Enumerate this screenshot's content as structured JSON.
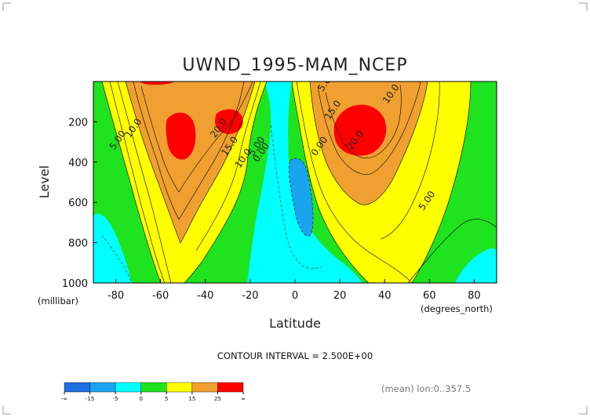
{
  "chart_data": {
    "type": "heatmap",
    "subtype": "filled-contour",
    "title": "UWND_1995-MAM_NCEP",
    "xlabel": "Latitude",
    "ylabel": "Level",
    "x_units": "(degrees_north)",
    "y_units": "(millibar)",
    "xlim": [
      -90,
      90
    ],
    "ylim": [
      1000,
      0
    ],
    "x_ticks": [
      "-80",
      "-60",
      "-40",
      "-20",
      "0",
      "20",
      "40",
      "60",
      "80"
    ],
    "y_ticks": [
      "200",
      "400",
      "600",
      "800",
      "1000"
    ],
    "contour_interval_text": "CONTOUR INTERVAL = 2.500E+00",
    "subtitle_note": "(mean) lon:0..357.5",
    "legend": {
      "levels": [
        "-∞",
        "-15",
        "-5",
        "0",
        "5",
        "15",
        "25",
        "∞"
      ],
      "colors": [
        "#1f6fe0",
        "#1aa4f0",
        "#00ffff",
        "#1ee31e",
        "#ffff00",
        "#f0a030",
        "#ff0000"
      ]
    },
    "grid": false,
    "contour_labels": [
      {
        "text": "5.00",
        "lat": -78,
        "level": 300
      },
      {
        "text": "10.0",
        "lat": -71,
        "level": 240
      },
      {
        "text": "20.0",
        "lat": -33,
        "level": 240
      },
      {
        "text": "15.0",
        "lat": -28,
        "level": 330
      },
      {
        "text": "10.0",
        "lat": -22,
        "level": 390
      },
      {
        "text": "0.00",
        "lat": -14,
        "level": 360
      },
      {
        "text": "5.00",
        "lat": -16,
        "level": 330
      },
      {
        "text": "0.00",
        "lat": 12,
        "level": 330
      },
      {
        "text": "5.00",
        "lat": 15,
        "level": 10
      },
      {
        "text": "15.0",
        "lat": 18,
        "level": 150
      },
      {
        "text": "10.0",
        "lat": 44,
        "level": 70
      },
      {
        "text": "20.0",
        "lat": 28,
        "level": 300
      },
      {
        "text": "5.00",
        "lat": 60,
        "level": 600
      }
    ]
  }
}
